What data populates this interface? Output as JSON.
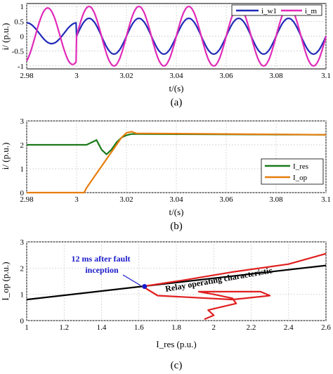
{
  "panels": [
    {
      "caption": "(a)",
      "ylabel": "i/ (p.u.)",
      "xlabel": "t/(s)",
      "legend": [
        "i_w1",
        "i_m"
      ],
      "x_ticks": [
        "2.98",
        "3",
        "3.02",
        "3.04",
        "3.06",
        "3.08",
        "3.1"
      ],
      "y_ticks": [
        "1",
        "0.5",
        "0",
        "-0.5",
        "-1"
      ]
    },
    {
      "caption": "(b)",
      "ylabel": "i/ (p.u.)",
      "xlabel": "t/(s)",
      "legend": [
        "I_res",
        "I_op"
      ],
      "x_ticks": [
        "2.98",
        "3",
        "3.02",
        "3.04",
        "3.06",
        "3.08",
        "3.1"
      ],
      "y_ticks": [
        "3",
        "2",
        "1",
        "0"
      ]
    },
    {
      "caption": "(c)",
      "ylabel": "I_op (p.u.)",
      "xlabel": "I_res (p.u.)",
      "annotation": "12 ms after fault inception",
      "annotation_lines": [
        "12 ms after fault",
        "inception"
      ],
      "characteristic_label": "Relay operating characteristic",
      "x_ticks": [
        "1",
        "1.2",
        "1.4",
        "1.6",
        "1.8",
        "2",
        "2.2",
        "2.4",
        "2.6"
      ],
      "y_ticks": [
        "3",
        "2",
        "1",
        "0"
      ]
    }
  ],
  "chart_data": [
    {
      "type": "line",
      "xlim": [
        2.98,
        3.1
      ],
      "ylim": [
        -1.1,
        1.1
      ],
      "grid": true,
      "legend_position": "top-right",
      "series": [
        {
          "name": "i_w1",
          "color": "#1f2ab8",
          "amplitude": 0.6,
          "frequency_hz": 50,
          "x": [
            2.98,
            3.0,
            3.005,
            3.015,
            3.025,
            3.035,
            3.045,
            3.055,
            3.065,
            3.075,
            3.085,
            3.095,
            3.1
          ],
          "y": [
            0.35,
            0.45,
            0.6,
            -0.6,
            0.6,
            -0.6,
            0.6,
            -0.6,
            0.6,
            -0.6,
            0.6,
            -0.6,
            0.0
          ]
        },
        {
          "name": "i_m",
          "color": "#e02ab8",
          "amplitude": 1.0,
          "frequency_hz": 50,
          "x": [
            2.98,
            2.985,
            2.995,
            3.0,
            3.005,
            3.015,
            3.025,
            3.035,
            3.045,
            3.055,
            3.065,
            3.075,
            3.085,
            3.095,
            3.1
          ],
          "y": [
            -0.5,
            -1.0,
            -1.0,
            0.0,
            1.0,
            -1.0,
            1.0,
            -1.0,
            1.0,
            -1.0,
            1.0,
            -1.0,
            1.0,
            -1.0,
            0.0
          ]
        }
      ]
    },
    {
      "type": "line",
      "xlim": [
        2.98,
        3.1
      ],
      "ylim": [
        0,
        3
      ],
      "grid": true,
      "legend_position": "right",
      "series": [
        {
          "name": "I_res",
          "color": "#1a7a1a",
          "x": [
            2.98,
            3.0,
            3.004,
            3.006,
            3.008,
            3.01,
            3.012,
            3.014,
            3.016,
            3.018,
            3.02,
            3.022,
            3.024,
            3.1
          ],
          "y": [
            2.0,
            2.0,
            2.0,
            2.1,
            2.2,
            1.8,
            1.6,
            1.8,
            2.1,
            2.3,
            2.4,
            2.45,
            2.45,
            2.42
          ]
        },
        {
          "name": "I_op",
          "color": "#e87d0d",
          "x": [
            2.98,
            3.003,
            3.004,
            3.006,
            3.008,
            3.01,
            3.012,
            3.014,
            3.016,
            3.018,
            3.02,
            3.022,
            3.024,
            3.1
          ],
          "y": [
            0.0,
            0.0,
            0.2,
            0.5,
            0.8,
            1.1,
            1.4,
            1.7,
            2.0,
            2.3,
            2.5,
            2.55,
            2.48,
            2.42
          ]
        }
      ]
    },
    {
      "type": "line",
      "xlim": [
        1,
        2.6
      ],
      "ylim": [
        0,
        3
      ],
      "grid": true,
      "series": [
        {
          "name": "",
          "color": "#000000",
          "x": [
            1.0,
            2.6
          ],
          "y": [
            0.8,
            2.1
          ]
        },
        {
          "name": "",
          "color": "#e02020",
          "x": [
            1.95,
            2.0,
            1.97,
            2.12,
            2.1,
            2.0,
            1.92,
            2.05,
            2.25,
            2.3,
            2.1,
            1.7,
            1.62,
            1.85,
            2.1,
            2.4,
            2.6
          ],
          "y": [
            0.05,
            0.2,
            0.4,
            0.65,
            0.85,
            1.0,
            1.1,
            1.1,
            1.1,
            0.95,
            0.8,
            0.95,
            1.3,
            1.55,
            1.85,
            2.15,
            2.55
          ]
        }
      ],
      "marker": {
        "x": 1.63,
        "y": 1.3,
        "color": "#1a1acc"
      }
    }
  ]
}
